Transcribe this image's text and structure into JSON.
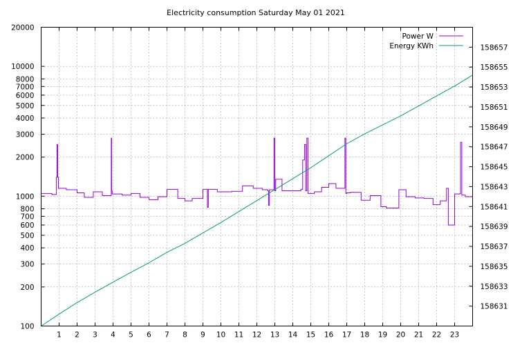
{
  "chart_data": {
    "type": "line",
    "title": "Electricity consumption Saturday May 01 2021",
    "x_ticks": [
      1,
      2,
      3,
      4,
      5,
      6,
      7,
      8,
      9,
      10,
      11,
      12,
      13,
      14,
      15,
      16,
      17,
      18,
      19,
      20,
      21,
      22,
      23
    ],
    "xlim": [
      0,
      24
    ],
    "y_left": {
      "scale": "log",
      "range": [
        100,
        20000
      ],
      "ticks": [
        100,
        200,
        300,
        400,
        500,
        600,
        700,
        800,
        1000,
        2000,
        3000,
        4000,
        5000,
        6000,
        7000,
        8000,
        10000,
        20000
      ],
      "tick_labels": [
        "100",
        "200",
        "300",
        "400",
        "500",
        "600",
        "700",
        "800",
        "1000",
        "2000",
        "3000",
        "4000",
        "5000",
        "6000",
        "7000",
        "8000",
        "10000",
        "20000"
      ]
    },
    "y_right": {
      "scale": "linear",
      "range": [
        158629,
        158659
      ],
      "ticks": [
        158631,
        158633,
        158635,
        158637,
        158639,
        158641,
        158643,
        158645,
        158647,
        158649,
        158651,
        158653,
        158655,
        158657
      ],
      "tick_labels": [
        "158631",
        "158633",
        "158635",
        "158637",
        "158639",
        "158641",
        "158643",
        "158645",
        "158647",
        "158649",
        "158651",
        "158653",
        "158655",
        "158657"
      ]
    },
    "grid": true,
    "legend_position": "top-right",
    "series": [
      {
        "name": "Power W",
        "axis": "left",
        "color": "#9400d3",
        "style": "step",
        "x": [
          0,
          0.6,
          0.85,
          0.88,
          0.92,
          0.96,
          1.4,
          2.0,
          2.4,
          2.9,
          3.4,
          3.9,
          3.92,
          3.95,
          4.5,
          5.0,
          5.5,
          6.0,
          6.5,
          7.0,
          7.6,
          8.0,
          8.4,
          9.0,
          9.25,
          9.3,
          9.8,
          10.6,
          11.2,
          11.8,
          12.3,
          12.6,
          12.65,
          12.7,
          12.95,
          13.0,
          13.05,
          13.4,
          14.1,
          14.45,
          14.55,
          14.65,
          14.72,
          14.78,
          14.85,
          15.2,
          15.6,
          16.0,
          16.4,
          16.9,
          16.95,
          17.0,
          17.2,
          17.8,
          18.3,
          18.9,
          19.2,
          19.9,
          20.3,
          20.8,
          21.3,
          21.8,
          22.2,
          22.55,
          22.6,
          22.65,
          23.0,
          23.3,
          23.33,
          23.4,
          23.6,
          24.0
        ],
        "y": [
          1050,
          1030,
          1400,
          2500,
          1400,
          1150,
          1120,
          1060,
          980,
          1080,
          1010,
          2800,
          1100,
          1040,
          1020,
          1050,
          980,
          940,
          990,
          1130,
          960,
          920,
          960,
          1130,
          820,
          1130,
          1080,
          1090,
          1200,
          1150,
          1120,
          1100,
          850,
          1120,
          2800,
          1100,
          1350,
          1100,
          1100,
          1130,
          1900,
          2500,
          1100,
          2800,
          1050,
          1080,
          1170,
          1250,
          1150,
          2800,
          1050,
          1060,
          1070,
          930,
          1010,
          830,
          810,
          1120,
          990,
          970,
          960,
          860,
          920,
          1150,
          1150,
          600,
          1040,
          1050,
          2600,
          1020,
          990,
          990
        ]
      },
      {
        "name": "Energy KWh",
        "axis": "right",
        "color": "#009e73",
        "style": "line",
        "x": [
          0,
          1,
          2,
          3,
          4,
          5,
          6,
          7,
          8,
          9,
          10,
          11,
          12,
          13,
          14,
          15,
          16,
          17,
          18,
          19,
          20,
          21,
          22,
          23,
          24
        ],
        "y": [
          158629.0,
          158630.2,
          158631.35,
          158632.4,
          158633.4,
          158634.4,
          158635.35,
          158636.4,
          158637.3,
          158638.35,
          158639.4,
          158640.5,
          158641.6,
          158642.7,
          158643.8,
          158644.9,
          158646.1,
          158647.3,
          158648.3,
          158649.2,
          158650.1,
          158651.1,
          158652.1,
          158653.1,
          158654.2
        ]
      }
    ]
  }
}
